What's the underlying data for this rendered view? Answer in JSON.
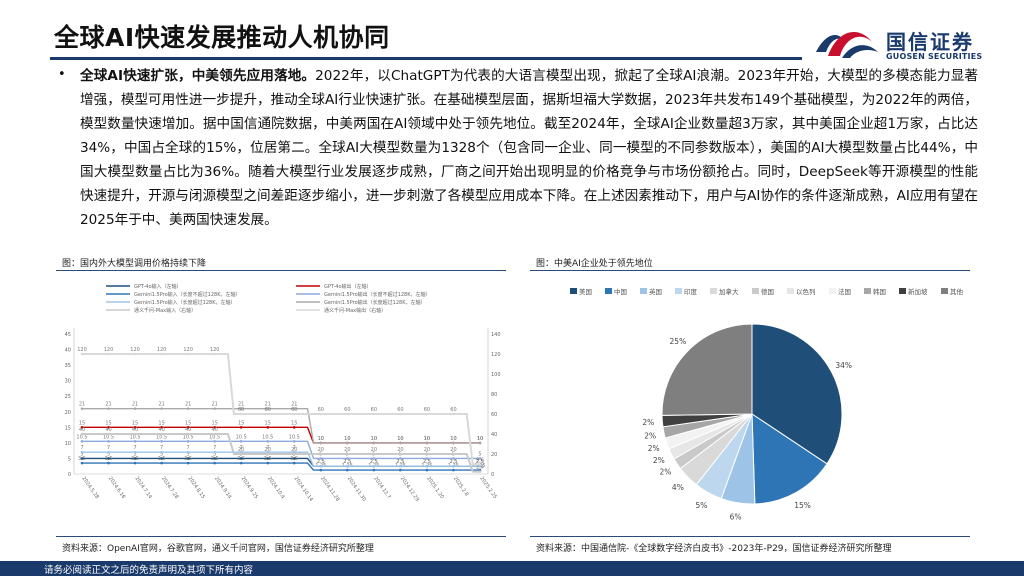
{
  "page": {
    "title": "全球AI快速发展推动人机协同",
    "logo_cn": "国信证券",
    "logo_en": "GUOSEN SECURITIES",
    "footer": "请务必阅读正文之后的免责声明及其项下所有内容"
  },
  "body": {
    "bullet": "•",
    "lead": "全球AI快速扩张，中美领先应用落地。",
    "text": "2022年，以ChatGPT为代表的大语言模型出现，掀起了全球AI浪潮。2023年开始，大模型的多模态能力显著增强，模型可用性进一步提升，推动全球AI行业快速扩张。在基础模型层面，据斯坦福大学数据，2023年共发布149个基础模型，为2022年的两倍，模型数量快速增加。据中国信通院数据，中美两国在AI领域中处于领先地位。截至2024年，全球AI企业数量超3万家，其中美国企业超1万家，占比达34%，中国占全球的15%，位居第二。全球AI大模型数量为1328个（包含同一企业、同一模型的不同参数版本），美国的AI大模型数量占比44%，中国大模型数量占比为36%。随着大模型行业发展逐步成熟，厂商之间开始出现明显的价格竞争与市场份额抢占。同时，DeepSeek等开源模型的性能快速提升，开源与闭源模型之间差距逐步缩小，进一步刺激了各模型应用成本下降。在上述因素推动下，用户与AI协作的条件逐渐成熟，AI应用有望在2025年于中、美两国快速发展。"
  },
  "left_panel": {
    "title": "图：国内外大模型调用价格持续下降",
    "source": "资料来源：OpenAI官网，谷歌官网，通义千问官网，国信证券经济研究所整理"
  },
  "right_panel": {
    "title": "图：中美AI企业处于领先地位",
    "source": "资料来源：中国通信院-《全球数字经济白皮书》-2023年-P29，国信证券经济研究所整理"
  },
  "colors": {
    "navy": "#1a3a6b",
    "brand_red": "#c8102e",
    "us": "#1f4e79",
    "cn": "#2e75b6",
    "uk": "#9dc3e6",
    "india": "#bdd7ee",
    "canada": "#d9d9d9",
    "germany": "#c9c9c9",
    "israel": "#e7e6e6",
    "france": "#f2f2f2",
    "korea": "#a6a6a6",
    "singapore": "#404040",
    "other": "#7f7f7f"
  },
  "chart_data": [
    {
      "type": "line",
      "title": "图：国内外大模型调用价格持续下降",
      "x": [
        "2024.5.28",
        "2024.6.16",
        "2024.7.14",
        "2024.7.28",
        "2024.8.15",
        "2024.9.14",
        "2024.9.25",
        "2024.10.4",
        "2024.10.14",
        "2024.11.28",
        "2024.11.30",
        "2024.12.7",
        "2024.12.29",
        "2025.1.20",
        "2025.2.8",
        "2025.2.25"
      ],
      "y_left_ticks": [
        "0",
        "5",
        "10",
        "15",
        "20",
        "25",
        "30",
        "35",
        "40",
        "45"
      ],
      "y_right_ticks": [
        "0",
        "20",
        "40",
        "60",
        "80",
        "100",
        "120",
        "140"
      ],
      "series": [
        {
          "name": "GPT-4o输入（左轴）",
          "color": "#1f4e79",
          "values": [
            5,
            5,
            5,
            5,
            5,
            5,
            5,
            5,
            5,
            2.5,
            2.5,
            2.5,
            2.5,
            2.5,
            2.5,
            2.5
          ]
        },
        {
          "name": "GPT-4o输出（左轴）",
          "color": "#c00000",
          "values": [
            15,
            15,
            15,
            15,
            15,
            15,
            15,
            15,
            15,
            10,
            10,
            10,
            10,
            10,
            10,
            10
          ]
        },
        {
          "name": "Gemini1.5Pro输入（长度不超过128K，左轴）",
          "color": "#2e75b6",
          "values": [
            3.5,
            3.5,
            3.5,
            3.5,
            3.5,
            3.5,
            3.5,
            3.5,
            3.5,
            1.25,
            1.25,
            1.25,
            1.25,
            1.25,
            1.25,
            1.25
          ]
        },
        {
          "name": "Gemini1.5Pro输出（长度不超过128K，左轴）",
          "color": "#8faadc",
          "values": [
            10.5,
            10.5,
            10.5,
            10.5,
            10.5,
            10.5,
            10.5,
            10.5,
            10.5,
            5,
            5,
            5,
            5,
            5,
            5,
            5
          ]
        },
        {
          "name": "Gemini1.5Pro输入（长度超过128K，左轴）",
          "color": "#9dc3e6",
          "values": [
            7,
            7,
            7,
            7,
            7,
            7,
            7,
            7,
            7,
            2.5,
            2.5,
            2.5,
            2.5,
            2.5,
            2.5,
            2.5
          ]
        },
        {
          "name": "Gemini1.5Pro输出（长度超过128K，左轴）",
          "color": "#a9a9a9",
          "values": [
            21,
            21,
            21,
            21,
            21,
            21,
            21,
            21,
            21,
            10,
            10,
            10,
            10,
            10,
            10,
            10
          ]
        },
        {
          "name": "通义千问-Max输入（右轴）",
          "color": "#c9c9c9",
          "values": [
            40,
            40,
            40,
            40,
            40,
            40,
            20,
            20,
            20,
            20,
            20,
            20,
            20,
            20,
            20,
            2.4
          ]
        },
        {
          "name": "通义千问-Max输出（右轴）",
          "color": "#d9d9d9",
          "values": [
            120,
            120,
            120,
            120,
            120,
            120,
            60,
            60,
            60,
            60,
            60,
            60,
            60,
            60,
            60,
            9.6
          ]
        }
      ]
    },
    {
      "type": "pie",
      "title": "图：中美AI企业处于领先地位",
      "legend": [
        "美国",
        "中国",
        "英国",
        "印度",
        "加拿大",
        "德国",
        "以色列",
        "法国",
        "韩国",
        "新加坡",
        "其他"
      ],
      "values": [
        34,
        15,
        6,
        5,
        4,
        2,
        2,
        2,
        2,
        2,
        25
      ],
      "labels": [
        "34%",
        "15%",
        "6%",
        "5%",
        "4%",
        "2%",
        "2%",
        "2%",
        "2%",
        "2%",
        "25%"
      ]
    }
  ]
}
